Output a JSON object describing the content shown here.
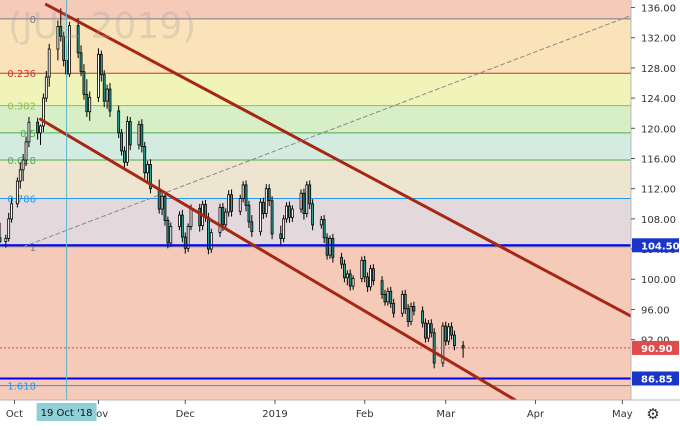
{
  "watermark": "(JUL 2019)",
  "settings_icon": "gear-icon",
  "colors": {
    "up_candle": "#ffffff",
    "down_candle": "#26a69a",
    "candle_outline": "#000000",
    "channel": "#a52714",
    "support_line": "#0000ff",
    "current_price_bg": "#e04b4b",
    "support_label_bg": "#1a36c8",
    "crosshair_label_bg": "#8fd0d8"
  },
  "chart_data": {
    "type": "candlestick",
    "ylim": [
      84.0,
      137.0
    ],
    "y_ticks": [
      136,
      132,
      128,
      124,
      120,
      116,
      112,
      108,
      104,
      100,
      96,
      92
    ],
    "y_tick_labels": [
      "136.00",
      "132.00",
      "128.00",
      "124.00",
      "120.00",
      "116.00",
      "112.00",
      "108.00",
      "104.00",
      "100.00",
      "96.00",
      "92.00"
    ],
    "x_range": [
      0,
      218
    ],
    "x_ticks": [
      {
        "label": "Oct",
        "day": 5
      },
      {
        "label": "Nov",
        "day": 34
      },
      {
        "label": "Dec",
        "day": 64
      },
      {
        "label": "2019",
        "day": 95
      },
      {
        "label": "Feb",
        "day": 126
      },
      {
        "label": "Mar",
        "day": 154
      },
      {
        "label": "Apr",
        "day": 185
      },
      {
        "label": "May",
        "day": 215
      }
    ],
    "crosshair": {
      "label": "19 Oct '18",
      "day": 23
    },
    "fibonacci": {
      "levels": [
        {
          "ratio": "0",
          "price": 134.5,
          "color": "#787b86",
          "fill": "#f3b8a0"
        },
        {
          "ratio": "0.236",
          "price": 127.3,
          "color": "#d32f2f",
          "fill": "#f8d9a0"
        },
        {
          "ratio": "0.382",
          "price": 123.0,
          "color": "#8bc34a",
          "fill": "#ebf0a0"
        },
        {
          "ratio": "0.5",
          "price": 119.4,
          "color": "#4caf50",
          "fill": "#c9e8b4"
        },
        {
          "ratio": "0.618",
          "price": 115.8,
          "color": "#4caf50",
          "fill": "#c5e4d4"
        },
        {
          "ratio": "0.786",
          "price": 110.7,
          "color": "#2196f3",
          "fill": "#e8dcc0"
        },
        {
          "ratio": "1",
          "price": 104.3,
          "color": "#787b86",
          "fill": "#d9ccd0"
        },
        {
          "ratio": "1.618",
          "price": 85.9,
          "color": "#2196f3",
          "fill": "#f3b8a0"
        }
      ]
    },
    "trend_lines": [
      {
        "name": "channel-upper",
        "points": [
          [
            16,
            136.4
          ],
          [
            220,
            94.7
          ]
        ]
      },
      {
        "name": "channel-lower",
        "points": [
          [
            14,
            121.2
          ],
          [
            178,
            84.0
          ]
        ]
      },
      {
        "name": "fib-diagonal",
        "points": [
          [
            8,
            104.3
          ],
          [
            230,
            136.7
          ]
        ]
      }
    ],
    "horizontal_lines": [
      {
        "price": 104.5,
        "label": "104.50"
      },
      {
        "price": 86.85,
        "label": "86.85"
      }
    ],
    "current_price": {
      "price": 90.9,
      "label": "90.90"
    },
    "candles": [
      [
        0,
        105.5,
        107.5,
        104.8,
        105.0
      ],
      [
        2,
        105.0,
        105.9,
        104.2,
        105.4
      ],
      [
        3,
        105.4,
        108.8,
        105.0,
        108.0
      ],
      [
        4,
        108.0,
        110.8,
        107.5,
        110.0
      ],
      [
        6,
        110.0,
        113.5,
        109.5,
        113.0
      ],
      [
        7,
        113.0,
        115.5,
        112.0,
        114.5
      ],
      [
        8,
        114.5,
        116.6,
        113.0,
        115.8
      ],
      [
        9,
        115.8,
        118.9,
        115.0,
        118.2
      ],
      [
        10,
        118.2,
        121.5,
        117.5,
        120.8
      ],
      [
        13,
        120.8,
        121.4,
        118.5,
        119.4
      ],
      [
        14,
        119.4,
        120.5,
        117.8,
        120.3
      ],
      [
        15,
        120.3,
        124.6,
        119.5,
        124.0
      ],
      [
        16,
        124.0,
        127.6,
        123.5,
        126.8
      ],
      [
        17,
        126.8,
        131.2,
        125.5,
        130.5
      ],
      [
        20,
        130.5,
        134.3,
        129.0,
        133.5
      ],
      [
        21,
        133.5,
        135.9,
        131.5,
        132.2
      ],
      [
        22,
        132.2,
        132.8,
        128.2,
        129.0
      ],
      [
        23,
        129.0,
        131.2,
        126.6,
        127.2
      ],
      [
        24,
        127.2,
        134.1,
        126.8,
        133.6
      ],
      [
        27,
        133.6,
        134.6,
        129.3,
        130.0
      ],
      [
        28,
        130.0,
        131.0,
        126.9,
        127.5
      ],
      [
        29,
        127.5,
        128.5,
        123.8,
        124.5
      ],
      [
        30,
        124.5,
        126.5,
        121.5,
        122.2
      ],
      [
        31,
        122.2,
        124.9,
        121.0,
        124.1
      ],
      [
        34,
        124.1,
        130.6,
        123.5,
        129.8
      ],
      [
        35,
        129.8,
        130.3,
        126.2,
        127.1
      ],
      [
        36,
        127.1,
        127.7,
        122.8,
        123.6
      ],
      [
        37,
        123.6,
        125.8,
        122.6,
        125.2
      ],
      [
        38,
        125.2,
        126.0,
        121.5,
        122.3
      ],
      [
        41,
        122.3,
        123.0,
        118.7,
        119.4
      ],
      [
        42,
        119.4,
        119.9,
        116.4,
        117.0
      ],
      [
        43,
        117.0,
        117.6,
        114.8,
        115.5
      ],
      [
        44,
        115.5,
        121.6,
        115.0,
        120.9
      ],
      [
        45,
        120.9,
        121.5,
        117.1,
        117.8
      ],
      [
        48,
        117.8,
        121.0,
        117.2,
        120.5
      ],
      [
        49,
        120.5,
        121.2,
        116.8,
        117.6
      ],
      [
        50,
        117.6,
        118.2,
        113.3,
        114.1
      ],
      [
        51,
        114.1,
        115.7,
        112.6,
        115.2
      ],
      [
        52,
        115.2,
        115.9,
        111.4,
        112.0
      ],
      [
        55,
        112.0,
        113.2,
        108.7,
        109.3
      ],
      [
        56,
        109.3,
        111.6,
        108.5,
        111.0
      ],
      [
        57,
        111.0,
        111.7,
        107.1,
        107.8
      ],
      [
        58,
        107.8,
        108.3,
        104.1,
        104.8
      ],
      [
        59,
        104.8,
        107.5,
        104.3,
        107.0
      ],
      [
        62,
        107.0,
        109.0,
        106.5,
        108.5
      ],
      [
        63,
        108.5,
        109.2,
        104.9,
        105.6
      ],
      [
        64,
        105.6,
        106.2,
        103.4,
        104.1
      ],
      [
        65,
        104.1,
        107.4,
        103.6,
        107.0
      ],
      [
        66,
        107.0,
        109.9,
        106.5,
        109.4
      ],
      [
        69,
        109.4,
        110.0,
        106.3,
        107.1
      ],
      [
        70,
        107.1,
        110.4,
        106.5,
        109.9
      ],
      [
        71,
        109.9,
        110.5,
        107.6,
        108.2
      ],
      [
        72,
        108.2,
        108.8,
        103.3,
        104.0
      ],
      [
        73,
        104.0,
        106.7,
        103.5,
        106.2
      ],
      [
        76,
        106.2,
        110.0,
        105.6,
        109.5
      ],
      [
        77,
        109.5,
        110.1,
        106.4,
        107.2
      ],
      [
        78,
        107.2,
        109.4,
        106.8,
        108.9
      ],
      [
        79,
        108.9,
        111.8,
        108.3,
        111.2
      ],
      [
        80,
        111.2,
        111.9,
        108.3,
        109.0
      ],
      [
        83,
        109.0,
        111.2,
        108.5,
        110.7
      ],
      [
        84,
        110.7,
        113.0,
        110.2,
        112.5
      ],
      [
        85,
        112.5,
        113.1,
        109.0,
        109.8
      ],
      [
        86,
        109.8,
        110.4,
        106.8,
        107.6
      ],
      [
        87,
        107.6,
        108.5,
        105.6,
        106.3
      ],
      [
        90,
        106.3,
        110.7,
        105.8,
        110.2
      ],
      [
        91,
        110.2,
        110.8,
        108.0,
        108.7
      ],
      [
        92,
        108.7,
        112.6,
        108.2,
        112.0
      ],
      [
        93,
        112.0,
        112.6,
        109.7,
        110.4
      ],
      [
        94,
        110.4,
        111.0,
        105.3,
        106.0
      ],
      [
        97,
        106.0,
        107.1,
        104.6,
        105.4
      ],
      [
        98,
        105.4,
        108.5,
        104.9,
        108.0
      ],
      [
        99,
        108.0,
        110.2,
        107.5,
        109.7
      ],
      [
        100,
        109.7,
        110.3,
        107.5,
        108.2
      ],
      [
        101,
        108.2,
        109.8,
        107.6,
        109.3
      ],
      [
        104,
        109.3,
        111.9,
        108.8,
        111.4
      ],
      [
        105,
        111.4,
        112.0,
        107.9,
        108.7
      ],
      [
        106,
        108.7,
        113.0,
        108.2,
        112.5
      ],
      [
        107,
        112.5,
        113.1,
        109.3,
        110.0
      ],
      [
        108,
        110.0,
        110.6,
        106.5,
        107.2
      ],
      [
        111,
        107.2,
        108.4,
        106.7,
        107.9
      ],
      [
        112,
        107.9,
        108.5,
        104.8,
        105.5
      ],
      [
        113,
        105.5,
        106.1,
        102.6,
        103.2
      ],
      [
        114,
        103.2,
        105.8,
        102.7,
        105.4
      ],
      [
        115,
        105.4,
        106.0,
        102.2,
        102.9
      ],
      [
        118,
        102.9,
        103.5,
        101.4,
        102.0
      ],
      [
        119,
        102.0,
        102.6,
        99.6,
        100.2
      ],
      [
        120,
        100.2,
        101.2,
        99.2,
        100.7
      ],
      [
        121,
        100.7,
        101.3,
        98.5,
        99.1
      ],
      [
        122,
        99.1,
        100.5,
        98.6,
        100.1
      ],
      [
        125,
        100.1,
        103.0,
        99.6,
        102.5
      ],
      [
        126,
        102.5,
        103.1,
        99.6,
        100.3
      ],
      [
        127,
        100.3,
        100.9,
        98.3,
        99.0
      ],
      [
        128,
        99.0,
        101.9,
        98.5,
        101.4
      ],
      [
        129,
        101.4,
        102.0,
        99.2,
        99.8
      ],
      [
        132,
        99.8,
        100.4,
        97.4,
        98.0
      ],
      [
        133,
        98.0,
        98.6,
        96.5,
        97.0
      ],
      [
        134,
        97.0,
        98.9,
        96.5,
        98.4
      ],
      [
        135,
        98.4,
        99.0,
        96.2,
        96.8
      ],
      [
        136,
        96.8,
        97.4,
        94.9,
        95.5
      ],
      [
        139,
        95.5,
        98.5,
        95.0,
        98.0
      ],
      [
        140,
        98.0,
        98.6,
        95.4,
        96.1
      ],
      [
        141,
        96.1,
        96.7,
        93.7,
        94.4
      ],
      [
        142,
        94.4,
        96.9,
        93.9,
        96.4
      ],
      [
        143,
        96.4,
        97.0,
        95.2,
        95.8
      ],
      [
        146,
        95.8,
        96.4,
        93.6,
        94.2
      ],
      [
        147,
        94.2,
        94.8,
        91.6,
        92.2
      ],
      [
        148,
        92.2,
        94.6,
        91.7,
        94.1
      ],
      [
        149,
        94.1,
        94.7,
        92.3,
        92.9
      ],
      [
        150,
        92.9,
        93.5,
        88.2,
        88.9
      ],
      [
        153,
        88.9,
        94.3,
        88.4,
        93.8
      ],
      [
        154,
        93.8,
        94.4,
        91.2,
        91.8
      ],
      [
        155,
        91.8,
        94.2,
        91.3,
        93.7
      ],
      [
        156,
        93.7,
        94.3,
        92.0,
        92.6
      ],
      [
        157,
        92.6,
        93.2,
        90.6,
        91.2
      ],
      [
        160,
        91.2,
        91.8,
        89.6,
        90.9
      ]
    ]
  }
}
